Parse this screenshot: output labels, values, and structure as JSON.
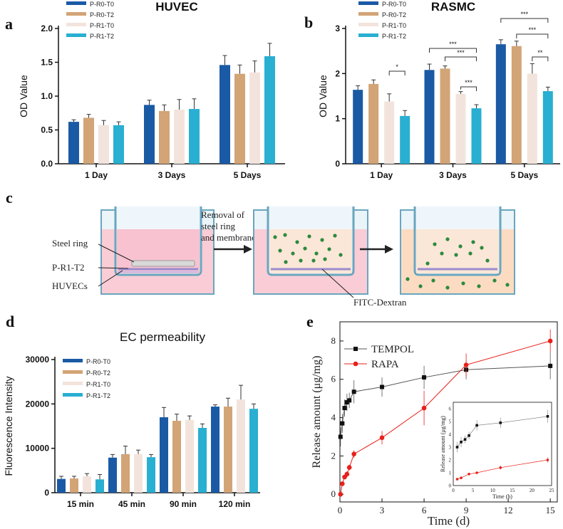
{
  "panel_labels": {
    "a": "a",
    "b": "b",
    "c": "c",
    "d": "d",
    "e": "e"
  },
  "colors": {
    "P-R0-T0": "#1a5aa5",
    "P-R0-T2": "#d2a476",
    "P-R1-T0": "#f2e4dc",
    "P-R1-T2": "#29afd1"
  },
  "schematic": {
    "steel_ring": "Steel ring",
    "sample": "P-R1-T2",
    "cells": "HUVECs",
    "removal": "Removal of steel ring and membrane",
    "dextran": "FITC-Dextran"
  },
  "chart_data": [
    {
      "id": "a",
      "type": "bar",
      "title": "HUVEC",
      "xlabel": "",
      "ylabel": "OD Value",
      "ylim": [
        0,
        2.0
      ],
      "yticks": [
        "0.0",
        "0.5",
        "1.0",
        "1.5",
        "2.0"
      ],
      "categories": [
        "1 Day",
        "3 Days",
        "5 Days"
      ],
      "series": [
        {
          "name": "P-R0-T0",
          "values": [
            0.62,
            0.87,
            1.46
          ],
          "errors": [
            0.03,
            0.07,
            0.14
          ]
        },
        {
          "name": "P-R0-T2",
          "values": [
            0.68,
            0.78,
            1.33
          ],
          "errors": [
            0.05,
            0.09,
            0.13
          ]
        },
        {
          "name": "P-R1-T0",
          "values": [
            0.57,
            0.8,
            1.35
          ],
          "errors": [
            0.07,
            0.15,
            0.17
          ]
        },
        {
          "name": "P-R1-T2",
          "values": [
            0.57,
            0.81,
            1.59
          ],
          "errors": [
            0.05,
            0.15,
            0.19
          ]
        }
      ]
    },
    {
      "id": "b",
      "type": "bar",
      "title": "RASMC",
      "xlabel": "",
      "ylabel": "OD Value",
      "ylim": [
        0,
        3
      ],
      "yticks": [
        "0",
        "1",
        "2",
        "3"
      ],
      "categories": [
        "1 Day",
        "3 Days",
        "5 Days"
      ],
      "series": [
        {
          "name": "P-R0-T0",
          "values": [
            1.64,
            2.08,
            2.65
          ],
          "errors": [
            0.09,
            0.13,
            0.1
          ]
        },
        {
          "name": "P-R0-T2",
          "values": [
            1.77,
            2.11,
            2.61
          ],
          "errors": [
            0.09,
            0.06,
            0.11
          ]
        },
        {
          "name": "P-R1-T0",
          "values": [
            1.38,
            1.55,
            2.0
          ],
          "errors": [
            0.17,
            0.05,
            0.22
          ]
        },
        {
          "name": "P-R1-T2",
          "values": [
            1.06,
            1.23,
            1.61
          ],
          "errors": [
            0.12,
            0.08,
            0.09
          ]
        }
      ],
      "significance": [
        "*",
        "***",
        "***",
        "***",
        "***",
        "***",
        "**"
      ]
    },
    {
      "id": "d",
      "type": "bar",
      "title": "EC permeability",
      "xlabel": "",
      "ylabel": "Fluorescence Intensity",
      "ylim": [
        0,
        30000
      ],
      "yticks": [
        "0",
        "10000",
        "20000",
        "30000"
      ],
      "categories": [
        "15 min",
        "45 min",
        "90 min",
        "120 min"
      ],
      "series": [
        {
          "name": "P-R0-T0",
          "values": [
            3100,
            7900,
            17000,
            19400
          ],
          "errors": [
            600,
            700,
            2200,
            400
          ]
        },
        {
          "name": "P-R0-T2",
          "values": [
            3200,
            8700,
            16200,
            19400
          ],
          "errors": [
            500,
            1800,
            1500,
            1900
          ]
        },
        {
          "name": "P-R1-T0",
          "values": [
            3700,
            8700,
            16400,
            21000
          ],
          "errors": [
            600,
            900,
            900,
            3200
          ]
        },
        {
          "name": "P-R1-T2",
          "values": [
            3000,
            8000,
            14600,
            18900
          ],
          "errors": [
            1100,
            600,
            900,
            1100
          ]
        }
      ]
    },
    {
      "id": "e",
      "type": "line",
      "title": "",
      "xlabel": "Time (d)",
      "ylabel": "Release amount (μg/mg)",
      "xlim": [
        0,
        15.5
      ],
      "ylim": [
        -0.4,
        9
      ],
      "xticks": [
        "0",
        "3",
        "6",
        "9",
        "12",
        "15"
      ],
      "yticks": [
        "0",
        "2",
        "4",
        "6",
        "8"
      ],
      "series": [
        {
          "name": "TEMPOL",
          "marker": "square",
          "color": "#111111",
          "x": [
            0.04,
            0.17,
            0.33,
            0.5,
            0.67,
            1,
            3,
            6,
            9,
            15
          ],
          "y": [
            3.0,
            3.7,
            4.5,
            4.8,
            4.9,
            5.35,
            5.6,
            6.1,
            6.5,
            6.7
          ],
          "errors": [
            0.5,
            0.5,
            0.45,
            0.45,
            0.4,
            0.6,
            0.5,
            0.6,
            0.5,
            0.7
          ]
        },
        {
          "name": "RAPA",
          "marker": "circle",
          "color": "#e8201a",
          "x": [
            0.04,
            0.17,
            0.33,
            0.5,
            0.67,
            1,
            3,
            6,
            9,
            15
          ],
          "y": [
            0.0,
            0.55,
            0.9,
            1.05,
            1.4,
            2.1,
            2.95,
            4.5,
            6.75,
            8.0
          ],
          "errors": [
            0.05,
            0.1,
            0.1,
            0.15,
            0.15,
            0.2,
            0.35,
            0.9,
            0.6,
            0.6
          ]
        }
      ],
      "inset": {
        "xlabel": "Time (h)",
        "ylabel": "Release amount (μg/mg)",
        "xticks": [
          "0",
          "5",
          "10",
          "15",
          "20",
          "25"
        ],
        "yticks": [
          "0",
          "1",
          "2",
          "3",
          "4",
          "5",
          "6"
        ],
        "xlim": [
          0,
          25
        ],
        "ylim": [
          0,
          6.5
        ],
        "series": [
          {
            "name": "TEMPOL",
            "x": [
              1,
              2,
              3,
              4,
              6,
              12,
              24
            ],
            "y": [
              3.0,
              3.4,
              3.6,
              3.9,
              4.7,
              4.9,
              5.4
            ],
            "errors": [
              0.4,
              0.4,
              0.3,
              0.3,
              0.4,
              0.4,
              0.5
            ]
          },
          {
            "name": "RAPA",
            "x": [
              1,
              2,
              4,
              6,
              12,
              24
            ],
            "y": [
              0.5,
              0.6,
              0.9,
              1.0,
              1.4,
              2.0
            ],
            "errors": [
              0.1,
              0.1,
              0.1,
              0.1,
              0.15,
              0.2
            ]
          }
        ]
      }
    }
  ]
}
